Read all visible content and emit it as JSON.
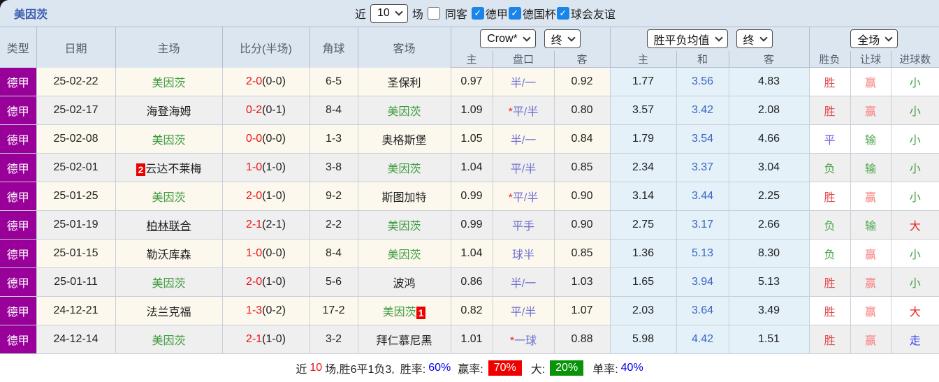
{
  "header": {
    "title": "美因茨",
    "near_label": "近",
    "near_value": "10",
    "games_label": "场",
    "same_away_label": "同客",
    "leagues": [
      {
        "label": "德甲",
        "checked": true
      },
      {
        "label": "德国杯",
        "checked": true
      },
      {
        "label": "球会友谊",
        "checked": true
      }
    ]
  },
  "table": {
    "columns": {
      "type": "类型",
      "date": "日期",
      "home": "主场",
      "score": "比分(半场)",
      "corner": "角球",
      "away": "客场"
    },
    "crow_group": {
      "select_main": "Crow*",
      "select_state": "终",
      "sub_home": "主",
      "sub_handicap": "盘口",
      "sub_away": "客"
    },
    "avg_group": {
      "select_main": "胜平负均值",
      "select_state": "终",
      "sub_home": "主",
      "sub_draw": "和",
      "sub_away": "客"
    },
    "full_group": {
      "select_main": "全场",
      "sub_result": "胜负",
      "sub_handicap": "让球",
      "sub_goals": "进球数"
    }
  },
  "rows": [
    {
      "league": "德甲",
      "date": "25-02-22",
      "home": {
        "name": "美因茨",
        "self": true
      },
      "score": {
        "ft": "2-0",
        "ht": "(0-0)"
      },
      "corner": "6-5",
      "away": {
        "name": "圣保利",
        "self": false
      },
      "crow": {
        "home": "0.97",
        "star": false,
        "handicap": "半/一",
        "away": "0.92"
      },
      "avg": {
        "home": "1.77",
        "draw": "3.56",
        "away": "4.83"
      },
      "full": {
        "result": "胜",
        "handicap": "赢",
        "goals": "小"
      }
    },
    {
      "league": "德甲",
      "date": "25-02-17",
      "home": {
        "name": "海登海姆",
        "self": false
      },
      "score": {
        "ft": "0-2",
        "ht": "(0-1)"
      },
      "corner": "8-4",
      "away": {
        "name": "美因茨",
        "self": true
      },
      "crow": {
        "home": "1.09",
        "star": true,
        "handicap": "平/半",
        "away": "0.80"
      },
      "avg": {
        "home": "3.57",
        "draw": "3.42",
        "away": "2.08"
      },
      "full": {
        "result": "胜",
        "handicap": "赢",
        "goals": "小"
      }
    },
    {
      "league": "德甲",
      "date": "25-02-08",
      "home": {
        "name": "美因茨",
        "self": true
      },
      "score": {
        "ft": "0-0",
        "ht": "(0-0)"
      },
      "corner": "1-3",
      "away": {
        "name": "奥格斯堡",
        "self": false
      },
      "crow": {
        "home": "1.05",
        "star": false,
        "handicap": "半/一",
        "away": "0.84"
      },
      "avg": {
        "home": "1.79",
        "draw": "3.54",
        "away": "4.66"
      },
      "full": {
        "result": "平",
        "handicap": "输",
        "goals": "小"
      }
    },
    {
      "league": "德甲",
      "date": "25-02-01",
      "home": {
        "name": "云达不莱梅",
        "self": false,
        "badge": "2",
        "badge_pos": "before"
      },
      "score": {
        "ft": "1-0",
        "ht": "(1-0)"
      },
      "corner": "3-8",
      "away": {
        "name": "美因茨",
        "self": true
      },
      "crow": {
        "home": "1.04",
        "star": false,
        "handicap": "平/半",
        "away": "0.85"
      },
      "avg": {
        "home": "2.34",
        "draw": "3.37",
        "away": "3.04"
      },
      "full": {
        "result": "负",
        "handicap": "输",
        "goals": "小"
      }
    },
    {
      "league": "德甲",
      "date": "25-01-25",
      "home": {
        "name": "美因茨",
        "self": true
      },
      "score": {
        "ft": "2-0",
        "ht": "(1-0)"
      },
      "corner": "9-2",
      "away": {
        "name": "斯图加特",
        "self": false
      },
      "crow": {
        "home": "0.99",
        "star": true,
        "handicap": "平/半",
        "away": "0.90"
      },
      "avg": {
        "home": "3.14",
        "draw": "3.44",
        "away": "2.25"
      },
      "full": {
        "result": "胜",
        "handicap": "赢",
        "goals": "小"
      }
    },
    {
      "league": "德甲",
      "date": "25-01-19",
      "home": {
        "name": "柏林联合",
        "self": false,
        "underline": true
      },
      "score": {
        "ft": "2-1",
        "ht": "(2-1)"
      },
      "corner": "2-2",
      "away": {
        "name": "美因茨",
        "self": true
      },
      "crow": {
        "home": "0.99",
        "star": false,
        "handicap": "平手",
        "away": "0.90"
      },
      "avg": {
        "home": "2.75",
        "draw": "3.17",
        "away": "2.66"
      },
      "full": {
        "result": "负",
        "handicap": "输",
        "goals": "大"
      }
    },
    {
      "league": "德甲",
      "date": "25-01-15",
      "home": {
        "name": "勒沃库森",
        "self": false
      },
      "score": {
        "ft": "1-0",
        "ht": "(0-0)"
      },
      "corner": "8-4",
      "away": {
        "name": "美因茨",
        "self": true
      },
      "crow": {
        "home": "1.04",
        "star": false,
        "handicap": "球半",
        "away": "0.85"
      },
      "avg": {
        "home": "1.36",
        "draw": "5.13",
        "away": "8.30"
      },
      "full": {
        "result": "负",
        "handicap": "赢",
        "goals": "小"
      }
    },
    {
      "league": "德甲",
      "date": "25-01-11",
      "home": {
        "name": "美因茨",
        "self": true
      },
      "score": {
        "ft": "2-0",
        "ht": "(1-0)"
      },
      "corner": "5-6",
      "away": {
        "name": "波鸿",
        "self": false
      },
      "crow": {
        "home": "0.86",
        "star": false,
        "handicap": "半/一",
        "away": "1.03"
      },
      "avg": {
        "home": "1.65",
        "draw": "3.94",
        "away": "5.13"
      },
      "full": {
        "result": "胜",
        "handicap": "赢",
        "goals": "小"
      }
    },
    {
      "league": "德甲",
      "date": "24-12-21",
      "home": {
        "name": "法兰克福",
        "self": false
      },
      "score": {
        "ft": "1-3",
        "ht": "(0-2)"
      },
      "corner": "17-2",
      "away": {
        "name": "美因茨",
        "self": true,
        "badge": "1",
        "badge_pos": "after"
      },
      "crow": {
        "home": "0.82",
        "star": false,
        "handicap": "平/半",
        "away": "1.07"
      },
      "avg": {
        "home": "2.03",
        "draw": "3.64",
        "away": "3.49"
      },
      "full": {
        "result": "胜",
        "handicap": "赢",
        "goals": "大"
      }
    },
    {
      "league": "德甲",
      "date": "24-12-14",
      "home": {
        "name": "美因茨",
        "self": true
      },
      "score": {
        "ft": "2-1",
        "ht": "(1-0)"
      },
      "corner": "3-2",
      "away": {
        "name": "拜仁慕尼黑",
        "self": false
      },
      "crow": {
        "home": "1.01",
        "star": true,
        "handicap": "一球",
        "away": "0.88"
      },
      "avg": {
        "home": "5.98",
        "draw": "4.42",
        "away": "1.51"
      },
      "full": {
        "result": "胜",
        "handicap": "赢",
        "goals": "走"
      }
    }
  ],
  "summary": {
    "near_label": "近",
    "near_value": "10",
    "record_text": "场,胜6平1负3,",
    "win_rate_label": "胜率:",
    "win_rate": "60%",
    "handicap_rate_label": "赢率:",
    "handicap_rate": "70%",
    "big_label": "大:",
    "big_rate": "20%",
    "single_rate_label": "单率:",
    "single_rate": "40%"
  },
  "colors": {
    "league_bg": "#990099",
    "self_team_green": "#3d9b3d",
    "score_red": "#ee1111",
    "result_win": "#e14e4e",
    "result_draw": "#6a5cf0",
    "result_lose": "#4ca64c",
    "handicap_win": "#fa7d7d",
    "handicap_lose": "#4ca64c",
    "goals_big": "#e82222",
    "goals_small": "#3f9f3f",
    "goals_push": "#3b46ee",
    "draw_odds_blue": "#3a66c8",
    "handicap_text_blue": "#6f6fd0",
    "rate_blue": "#0000ee",
    "pill_red_bg": "#ee0000",
    "pill_green_bg": "#089308",
    "header_bg": "#dce6f1",
    "checkbox_blue": "#1a84e8"
  }
}
